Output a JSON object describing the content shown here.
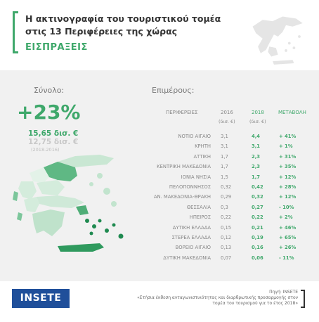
{
  "header": {
    "title": "Η ακτινογραφία του τουριστικού τομέα στις 13 Περιφέρειες της χώρας",
    "subtitle": "ΕΙΣΠΡΑΞΕΙΣ"
  },
  "summary": {
    "label": "Σύνολο:",
    "change": "+23%",
    "total_2018": "15,65 δισ. €",
    "total_2016": "12,75 δισ. €",
    "years": "(2018-2016)"
  },
  "details_label": "Επιμέρους:",
  "colors": {
    "accent": "#3fa86b",
    "muted": "#888888",
    "panel": "#f1f1f1",
    "logo": "#1f4f9a"
  },
  "chart_data": {
    "type": "table",
    "columns": [
      "ΠΕΡΙΦΕΡΕΙΕΣ",
      "2016",
      "2018",
      "ΜΕΤΑΒΟΛΗ"
    ],
    "units": [
      "",
      "(δισ. €)",
      "(δισ. €)",
      ""
    ],
    "rows": [
      {
        "region": "ΝΟΤΙΟ ΑΙΓΑΙΟ",
        "v2016": "3,1",
        "v2018": "4,4",
        "change": "+ 41%"
      },
      {
        "region": "ΚΡΗΤΗ",
        "v2016": "3,1",
        "v2018": "3,1",
        "change": "+ 1%"
      },
      {
        "region": "ΑΤΤΙΚΗ",
        "v2016": "1,7",
        "v2018": "2,3",
        "change": "+ 31%"
      },
      {
        "region": "ΚΕΝΤΡΙΚΗ ΜΑΚΕΔΟΝΙΑ",
        "v2016": "1,7",
        "v2018": "2,3",
        "change": "+ 35%"
      },
      {
        "region": "ΙΟΝΙΑ ΝΗΣΙΑ",
        "v2016": "1,5",
        "v2018": "1,7",
        "change": "+ 12%"
      },
      {
        "region": "ΠΕΛΟΠΟΝΝΗΣΟΣ",
        "v2016": "0,32",
        "v2018": "0,42",
        "change": "+ 28%"
      },
      {
        "region": "ΑΝ. ΜΑΚΕΔΟΝΙΑ-ΘΡΑΚΗ",
        "v2016": "0,29",
        "v2018": "0,32",
        "change": "+ 12%"
      },
      {
        "region": "ΘΕΣΣΑΛΙΑ",
        "v2016": "0,3",
        "v2018": "0,27",
        "change": "- 10%"
      },
      {
        "region": "ΗΠΕΙΡΟΣ",
        "v2016": "0,22",
        "v2018": "0,22",
        "change": "+ 2%"
      },
      {
        "region": "ΔΥΤΙΚΗ ΕΛΛΑΔΑ",
        "v2016": "0,15",
        "v2018": "0,21",
        "change": "+ 46%"
      },
      {
        "region": "ΣΤΕΡΕΑ ΕΛΛΑΔΑ",
        "v2016": "0,12",
        "v2018": "0,19",
        "change": "+ 65%"
      },
      {
        "region": "ΒΟΡΕΙΟ ΑΙΓΑΙΟ",
        "v2016": "0,13",
        "v2018": "0,16",
        "change": "+ 26%"
      },
      {
        "region": "ΔΥΤΙΚΗ ΜΑΚΕΔΟΝΙΑ",
        "v2016": "0,07",
        "v2018": "0,06",
        "change": "- 11%"
      }
    ]
  },
  "footer": {
    "logo": "INSETE",
    "source_title": "Πηγή: INSETE",
    "source_text": "«Ετήσια έκθεση ανταγωνιστικότητας και διαρθρωτικής προσαρμογής στον τομέα του τουρισμού για το έτος 2018»"
  }
}
